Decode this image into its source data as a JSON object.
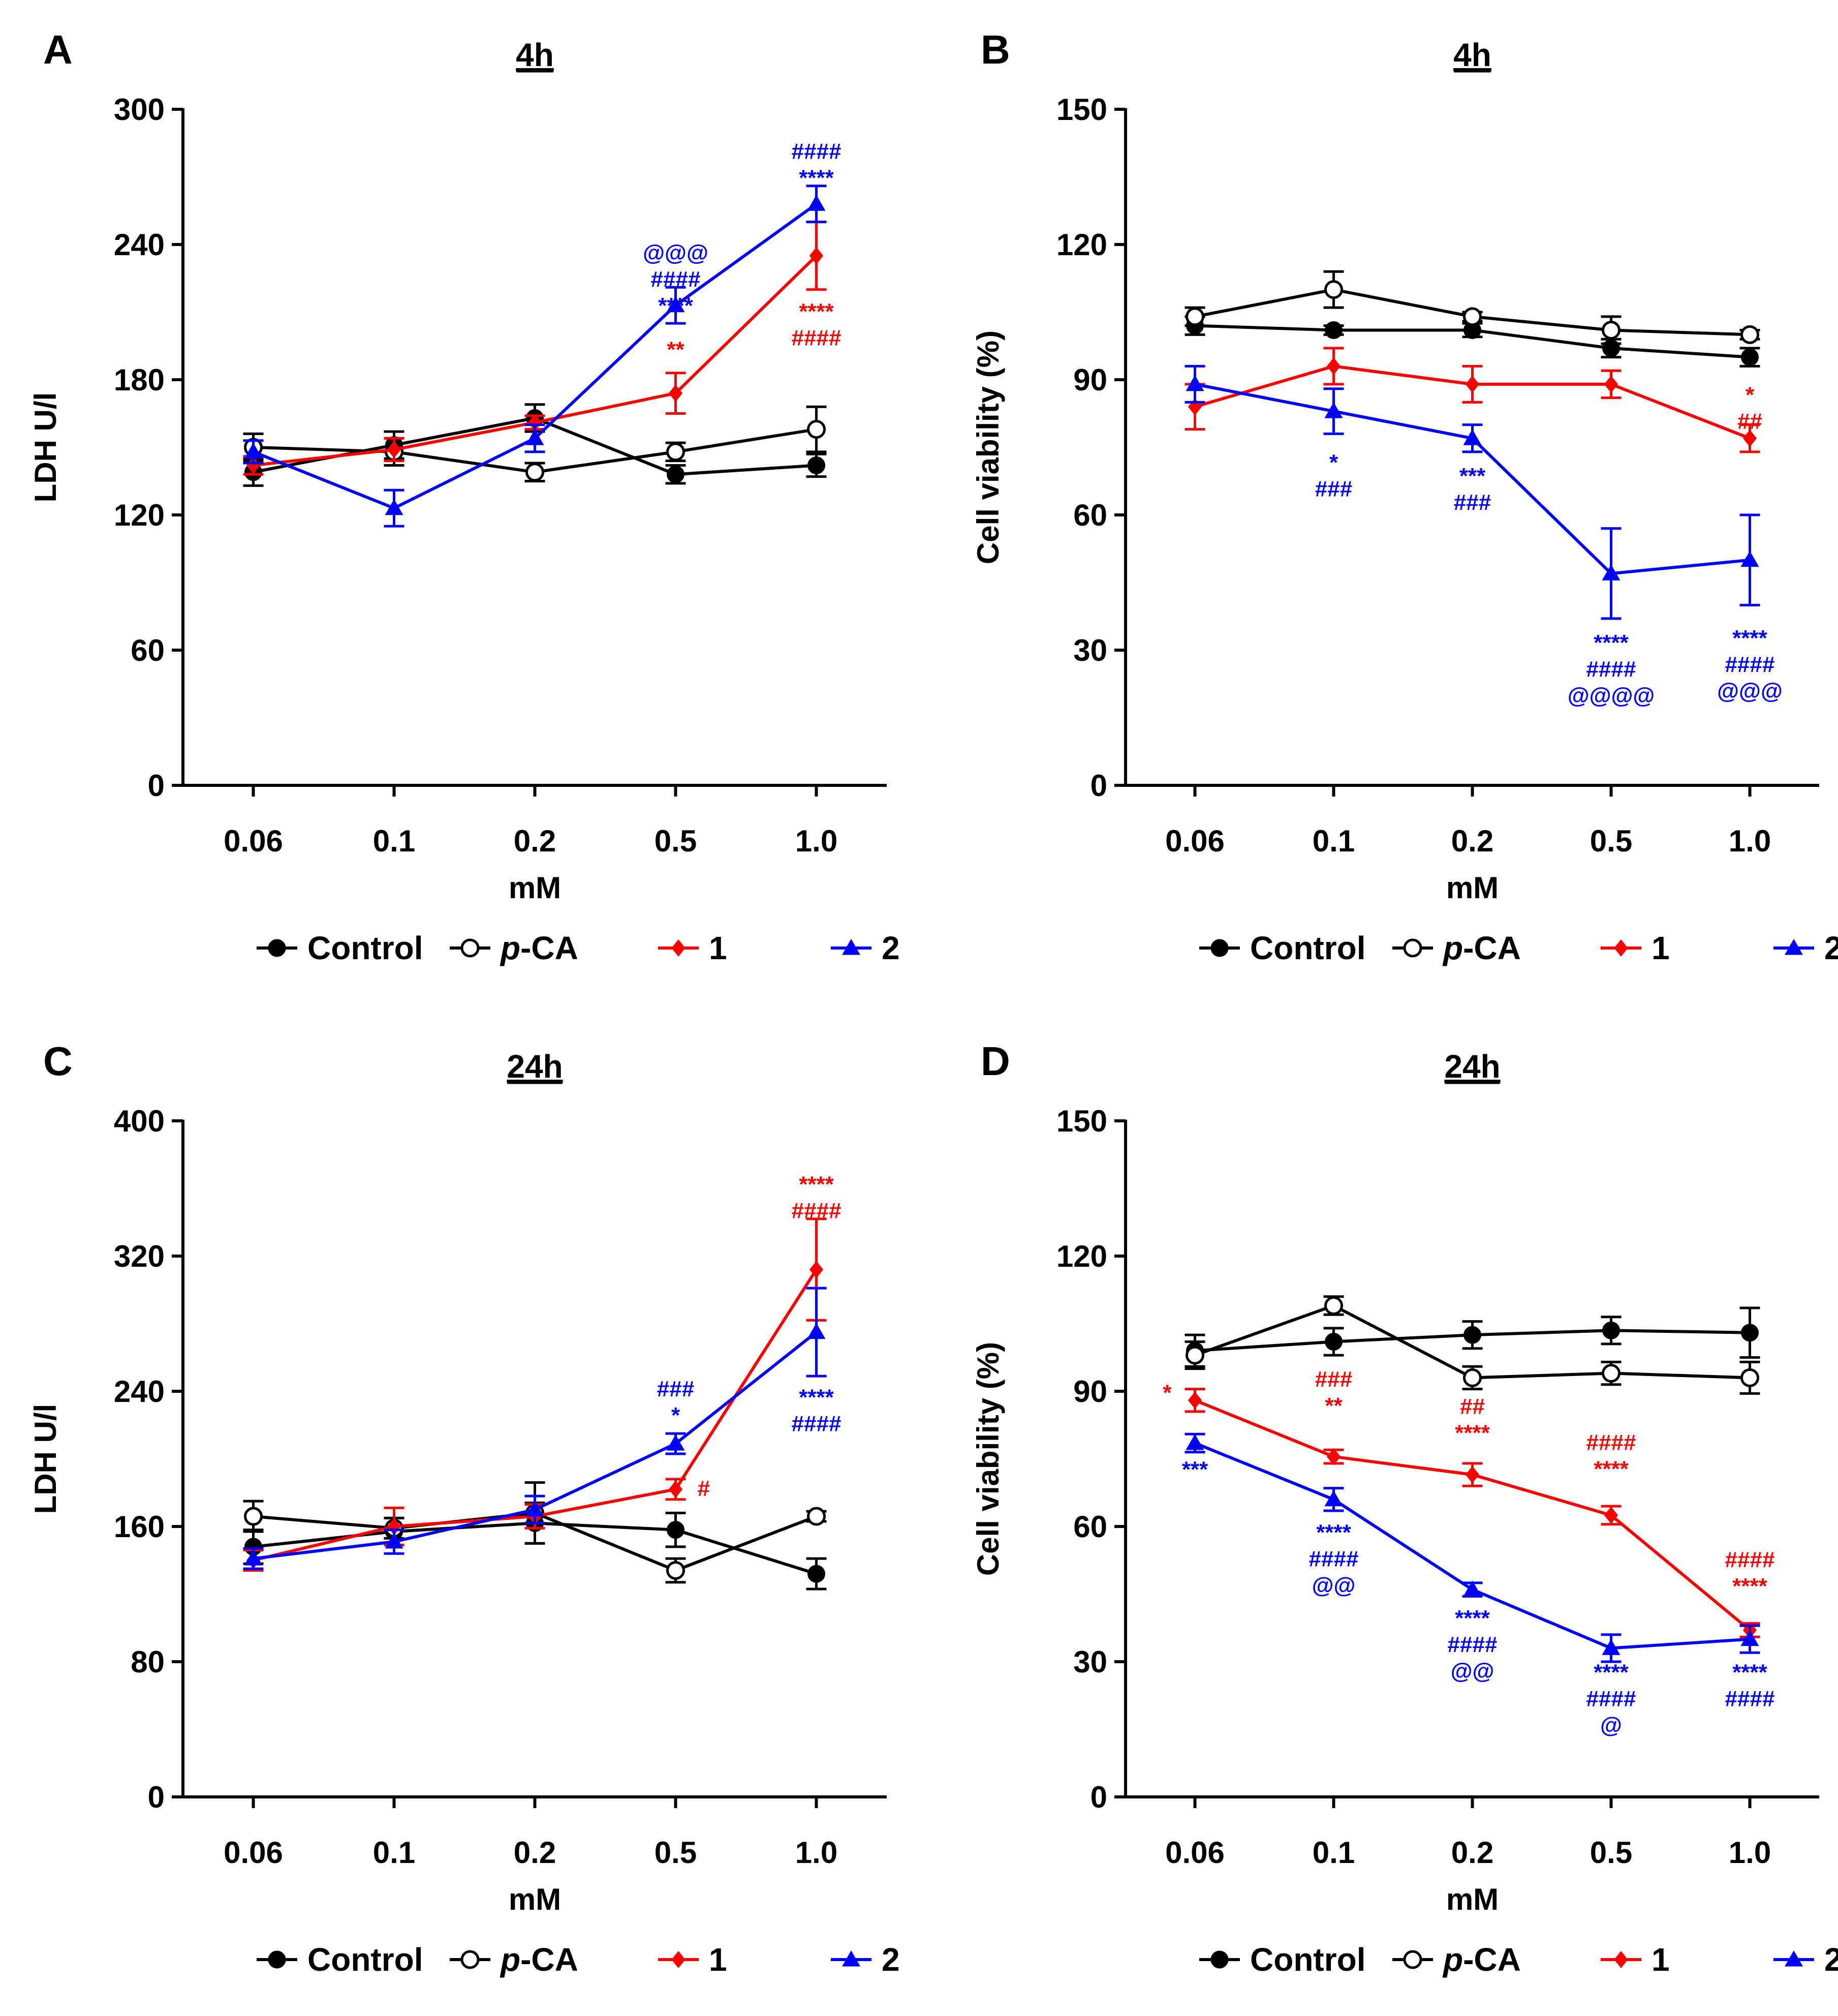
{
  "figure_name": "ldh-viability-figure",
  "colors": {
    "control": "#000000",
    "pca": "#000000",
    "c1": "#ff0000",
    "c2": "#0000ff"
  },
  "chart_data": [
    {
      "id": "A",
      "letter": "A",
      "title": "4h",
      "type": "line",
      "ylabel": "LDH U/l",
      "xlabel": "mM",
      "categories": [
        "0.06",
        "0.1",
        "0.2",
        "0.5",
        "1.0"
      ],
      "ylim": [
        0,
        300
      ],
      "yticks": [
        0,
        60,
        120,
        180,
        240,
        300
      ],
      "grid": false,
      "legend": [
        "Control",
        "p-CA",
        "1",
        "2"
      ],
      "series": [
        {
          "name": "Control",
          "key": "control",
          "marker": "circle-filled",
          "values": [
            139,
            151,
            163,
            138,
            142
          ],
          "errors": [
            6,
            6,
            6,
            4,
            5
          ]
        },
        {
          "name": "p-CA",
          "key": "pca",
          "marker": "circle-open",
          "values": [
            150,
            148,
            139,
            148,
            158
          ],
          "errors": [
            6,
            6,
            4,
            4,
            10
          ]
        },
        {
          "name": "1",
          "key": "c1",
          "marker": "diamond",
          "values": [
            142,
            149,
            161,
            174,
            235
          ],
          "errors": [
            4,
            5,
            3,
            9,
            15
          ]
        },
        {
          "name": "2",
          "key": "c2",
          "marker": "triangle",
          "values": [
            148,
            123,
            154,
            213,
            258
          ],
          "errors": [
            5,
            8,
            6,
            8,
            8
          ]
        }
      ],
      "annotations": [
        {
          "color": "c2",
          "x": "0.5",
          "y": 233,
          "lines": [
            "@@@",
            "####",
            "****"
          ]
        },
        {
          "color": "c1",
          "x": "0.5",
          "y": 190,
          "lines": [
            "**"
          ]
        },
        {
          "color": "c2",
          "x": "1.0",
          "y": 278,
          "lines": [
            "####",
            "****"
          ]
        },
        {
          "color": "c1",
          "x": "1.0",
          "y": 207,
          "lines": [
            "****",
            "####"
          ]
        }
      ]
    },
    {
      "id": "B",
      "letter": "B",
      "title": "4h",
      "type": "line",
      "ylabel": "Cell viability (%)",
      "xlabel": "mM",
      "categories": [
        "0.06",
        "0.1",
        "0.2",
        "0.5",
        "1.0"
      ],
      "ylim": [
        0,
        150
      ],
      "yticks": [
        0,
        30,
        60,
        90,
        120,
        150
      ],
      "grid": false,
      "legend": [
        "Control",
        "p-CA",
        "1",
        "2"
      ],
      "series": [
        {
          "name": "Control",
          "key": "control",
          "marker": "circle-filled",
          "values": [
            102,
            101,
            101,
            97,
            95
          ],
          "errors": [
            2,
            1,
            1.5,
            2,
            2
          ]
        },
        {
          "name": "p-CA",
          "key": "pca",
          "marker": "circle-open",
          "values": [
            104,
            110,
            104,
            101,
            100
          ],
          "errors": [
            2,
            4,
            1,
            3,
            1
          ]
        },
        {
          "name": "1",
          "key": "c1",
          "marker": "diamond",
          "values": [
            84,
            93,
            89,
            89,
            77
          ],
          "errors": [
            5,
            4,
            4,
            3,
            3
          ]
        },
        {
          "name": "2",
          "key": "c2",
          "marker": "triangle",
          "values": [
            89,
            83,
            77,
            47,
            50
          ],
          "errors": [
            4,
            5,
            3,
            10,
            10
          ]
        }
      ],
      "annotations": [
        {
          "color": "c1",
          "x": "1.0",
          "y": 85,
          "lines": [
            "*",
            "##"
          ]
        },
        {
          "color": "c2",
          "x": "0.1",
          "y": 70,
          "lines": [
            "*",
            "###"
          ]
        },
        {
          "color": "c2",
          "x": "0.2",
          "y": 67,
          "lines": [
            "***",
            "###"
          ]
        },
        {
          "color": "c2",
          "x": "0.5",
          "y": 30,
          "lines": [
            "****",
            "####",
            "@@@@"
          ]
        },
        {
          "color": "c2",
          "x": "1.0",
          "y": 31,
          "lines": [
            "****",
            "####",
            "@@@"
          ]
        }
      ]
    },
    {
      "id": "C",
      "letter": "C",
      "title": "24h",
      "type": "line",
      "ylabel": "LDH U/l",
      "xlabel": "mM",
      "categories": [
        "0.06",
        "0.1",
        "0.2",
        "0.5",
        "1.0"
      ],
      "ylim": [
        0,
        400
      ],
      "yticks": [
        0,
        80,
        160,
        240,
        320,
        400
      ],
      "grid": false,
      "legend": [
        "Control",
        "p-CA",
        "1",
        "2"
      ],
      "series": [
        {
          "name": "Control",
          "key": "control",
          "marker": "circle-filled",
          "values": [
            148,
            157,
            162,
            158,
            132
          ],
          "errors": [
            10,
            8,
            12,
            10,
            9
          ]
        },
        {
          "name": "p-CA",
          "key": "pca",
          "marker": "circle-open",
          "values": [
            166,
            159,
            168,
            134,
            166
          ],
          "errors": [
            9,
            6,
            18,
            7,
            3
          ]
        },
        {
          "name": "1",
          "key": "c1",
          "marker": "diamond",
          "values": [
            140,
            160,
            166,
            182,
            312
          ],
          "errors": [
            6,
            11,
            7,
            6,
            30
          ]
        },
        {
          "name": "2",
          "key": "c2",
          "marker": "triangle",
          "values": [
            141,
            151,
            170,
            209,
            275
          ],
          "errors": [
            6,
            7,
            8,
            6,
            26
          ]
        }
      ],
      "annotations": [
        {
          "color": "c2",
          "x": "0.5",
          "y": 237,
          "lines": [
            "###",
            "*"
          ]
        },
        {
          "color": "c1",
          "x": "0.5",
          "y": 178,
          "dx": 0.2,
          "lines": [
            "#"
          ]
        },
        {
          "color": "c1",
          "x": "1.0",
          "y": 358,
          "lines": [
            "****",
            "####"
          ]
        },
        {
          "color": "c2",
          "x": "1.0",
          "y": 232,
          "lines": [
            "****",
            "####"
          ]
        }
      ]
    },
    {
      "id": "D",
      "letter": "D",
      "title": "24h",
      "type": "line",
      "ylabel": "Cell viability (%)",
      "xlabel": "mM",
      "categories": [
        "0.06",
        "0.1",
        "0.2",
        "0.5",
        "1.0"
      ],
      "ylim": [
        0,
        150
      ],
      "yticks": [
        0,
        30,
        60,
        90,
        120,
        150
      ],
      "grid": false,
      "legend": [
        "Control",
        "p-CA",
        "1",
        "2"
      ],
      "series": [
        {
          "name": "Control",
          "key": "control",
          "marker": "circle-filled",
          "values": [
            99,
            101,
            102.5,
            103.5,
            103
          ],
          "errors": [
            3.5,
            3,
            3,
            3,
            5.5
          ]
        },
        {
          "name": "p-CA",
          "key": "pca",
          "marker": "circle-open",
          "values": [
            98,
            109,
            93,
            94,
            93
          ],
          "errors": [
            3,
            2,
            2.5,
            2.5,
            3.5
          ]
        },
        {
          "name": "1",
          "key": "c1",
          "marker": "diamond",
          "values": [
            88,
            75.5,
            71.5,
            62.5,
            37
          ],
          "errors": [
            2.5,
            1.5,
            2.5,
            2,
            1.5
          ]
        },
        {
          "name": "2",
          "key": "c2",
          "marker": "triangle",
          "values": [
            78.5,
            66,
            46,
            33,
            35
          ],
          "errors": [
            2,
            2.5,
            1.5,
            3,
            3
          ]
        }
      ],
      "annotations": [
        {
          "color": "c1",
          "x": "0.06",
          "y": 88,
          "dx": -0.2,
          "lines": [
            "*"
          ]
        },
        {
          "color": "c2",
          "x": "0.06",
          "y": 71,
          "lines": [
            "***"
          ]
        },
        {
          "color": "c1",
          "x": "0.1",
          "y": 91,
          "lines": [
            "###",
            "**"
          ]
        },
        {
          "color": "c2",
          "x": "0.1",
          "y": 57,
          "lines": [
            "****",
            "####",
            "@@"
          ]
        },
        {
          "color": "c1",
          "x": "0.2",
          "y": 85,
          "lines": [
            "##",
            "****"
          ]
        },
        {
          "color": "c2",
          "x": "0.2",
          "y": 38,
          "lines": [
            "****",
            "####",
            "@@"
          ]
        },
        {
          "color": "c1",
          "x": "0.5",
          "y": 77,
          "lines": [
            "####",
            "****"
          ]
        },
        {
          "color": "c2",
          "x": "0.5",
          "y": 26,
          "lines": [
            "****",
            "####",
            "@"
          ]
        },
        {
          "color": "c1",
          "x": "1.0",
          "y": 51,
          "lines": [
            "####",
            "****"
          ]
        },
        {
          "color": "c2",
          "x": "1.0",
          "y": 26,
          "lines": [
            "****",
            "####"
          ]
        }
      ]
    }
  ]
}
